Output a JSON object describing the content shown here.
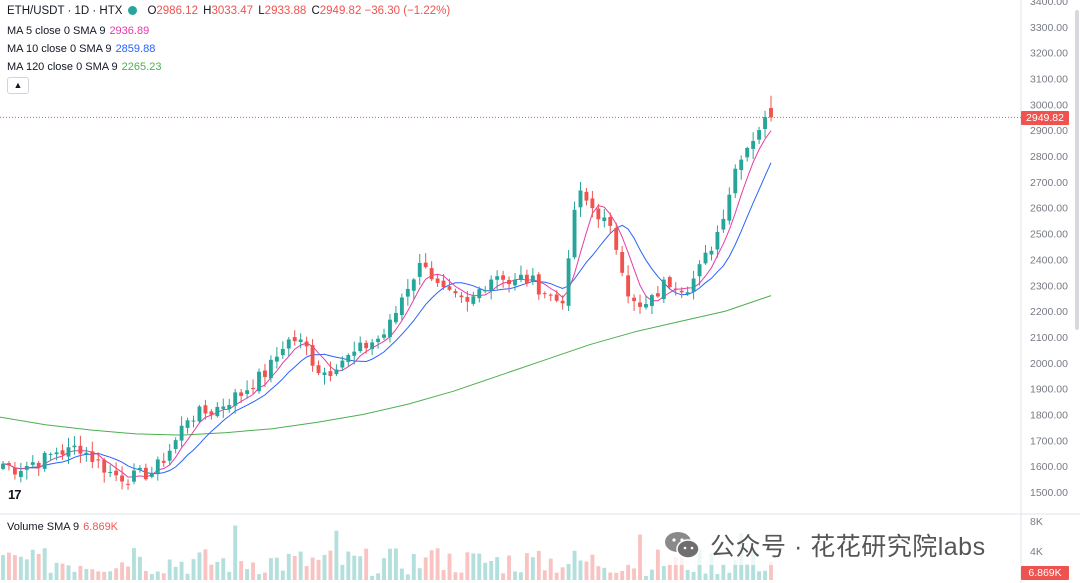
{
  "header": {
    "symbol": "ETH/USDT · 1D · HTX",
    "o_label": "O",
    "o": "2986.12",
    "h_label": "H",
    "h": "3033.47",
    "l_label": "L",
    "l": "2933.88",
    "c_label": "C",
    "c": "2949.82",
    "change": "−36.30 (−1.22%)"
  },
  "indicators": [
    {
      "label": "MA 5 close 0 SMA 9",
      "value": "2936.89",
      "color": "#e63ba8"
    },
    {
      "label": "MA 10 close 0 SMA 9",
      "value": "2859.88",
      "color": "#2962ff"
    },
    {
      "label": "MA 120 close 0 SMA 9",
      "value": "2265.23",
      "color": "#4caf50"
    }
  ],
  "volume_legend": {
    "label": "Volume SMA 9",
    "value": "6.869K"
  },
  "price_tag": "2949.82",
  "volume_tag": "6.869K",
  "logo_text": "17",
  "watermark": "公众号 · 花花研究院labs",
  "colors": {
    "up": "#26a69a",
    "down": "#ef5350",
    "ma5": "#e63ba8",
    "ma10": "#2962ff",
    "ma120": "#4caf50"
  },
  "chart_data": {
    "type": "candlestick",
    "price_axis": {
      "ticks": [
        3400,
        3300,
        3200,
        3100,
        3000,
        2900,
        2800,
        2700,
        2600,
        2500,
        2400,
        2300,
        2200,
        2100,
        2000,
        1900,
        1800,
        1700,
        1600,
        1500
      ],
      "range": [
        1450,
        3420
      ]
    },
    "volume_axis": {
      "ticks": [
        "8K",
        "4K"
      ]
    },
    "close_path": [
      1610,
      1590,
      1600,
      1620,
      1630,
      1660,
      1655,
      1680,
      1640,
      1610,
      1570,
      1560,
      1555,
      1570,
      1580,
      1640,
      1700,
      1790,
      1800,
      1810,
      1830,
      1860,
      1880,
      1920,
      1950,
      2000,
      2080,
      2090,
      2060,
      1980,
      1960,
      2010,
      2020,
      2050,
      2080,
      2100,
      2160,
      2270,
      2340,
      2400,
      2300,
      2260,
      2240,
      2220,
      2280,
      2330,
      2350,
      2300,
      2330,
      2310,
      2280,
      2240,
      2260,
      2660,
      2620,
      2580,
      2520,
      2420,
      2240,
      2200,
      2240,
      2300,
      2320,
      2290,
      2330,
      2410,
      2500,
      2640,
      2800,
      2850,
      2920,
      2949.82
    ],
    "ma120_path": [
      1790,
      1760,
      1740,
      1725,
      1720,
      1730,
      1745,
      1770,
      1800,
      1840,
      1890,
      1950,
      2010,
      2070,
      2120,
      2160,
      2200,
      2260
    ]
  }
}
